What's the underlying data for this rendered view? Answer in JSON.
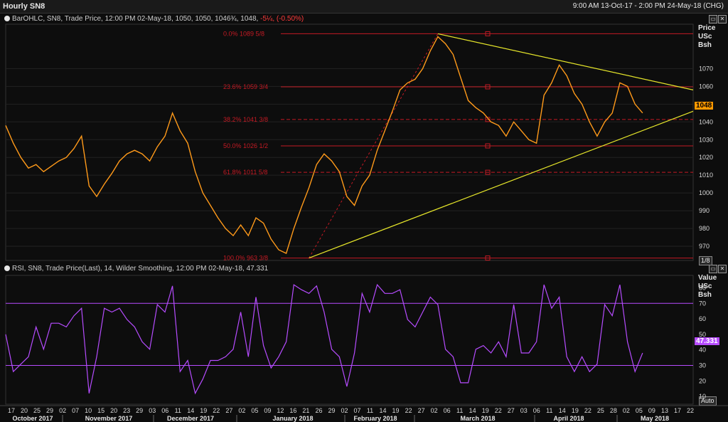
{
  "window": {
    "title": "Hourly SN8",
    "range": "9:00 AM 13-Oct-17 - 2:00 PM 24-May-18 (CHG)"
  },
  "price_legend": {
    "text": "BarOHLC, SN8, Trade Price, 12:00 PM 02-May-18, 1050, 1050, 1046",
    "frac": "¾",
    "text2": ", 1048,",
    "change": "-5¼, (-0.50%)"
  },
  "rsi_legend": {
    "text": "RSI, SN8, Trade Price(Last), 14, Wilder Smoothing, 12:00 PM 02-May-18, 47.331"
  },
  "price_axis": {
    "unit": "Price\nUSc\nBsh",
    "last": "1048",
    "last_color": "#ff9900",
    "scale_btn": "1/8"
  },
  "rsi_axis": {
    "unit": "Value\nUSc\nBsh",
    "last": "47.331",
    "last_color": "#b64cff",
    "scale_btn": "Auto"
  },
  "colors": {
    "price": "#ff9a1a",
    "rsi": "#b64cff",
    "fib": "#c41a24",
    "trend": "#e6e62a"
  },
  "chart_data": [
    {
      "type": "line",
      "title": "",
      "series_name": "SN8 Hourly Trade Price",
      "ylim": [
        962,
        1095
      ],
      "yticks": [
        970,
        980,
        990,
        1000,
        1010,
        1020,
        1030,
        1040,
        1050,
        1060,
        1070
      ],
      "x_index_range": [
        0,
        230
      ],
      "points": [
        [
          0,
          1038
        ],
        [
          3,
          1028
        ],
        [
          6,
          1020
        ],
        [
          9,
          1014
        ],
        [
          12,
          1016
        ],
        [
          15,
          1012
        ],
        [
          18,
          1015
        ],
        [
          21,
          1018
        ],
        [
          24,
          1020
        ],
        [
          27,
          1025
        ],
        [
          30,
          1032
        ],
        [
          33,
          1004
        ],
        [
          36,
          998
        ],
        [
          39,
          1005
        ],
        [
          42,
          1011
        ],
        [
          45,
          1018
        ],
        [
          48,
          1022
        ],
        [
          51,
          1024
        ],
        [
          54,
          1022
        ],
        [
          57,
          1018
        ],
        [
          60,
          1026
        ],
        [
          63,
          1032
        ],
        [
          66,
          1045
        ],
        [
          69,
          1035
        ],
        [
          72,
          1028
        ],
        [
          75,
          1012
        ],
        [
          78,
          1000
        ],
        [
          81,
          993
        ],
        [
          84,
          986
        ],
        [
          87,
          980
        ],
        [
          90,
          976
        ],
        [
          93,
          982
        ],
        [
          96,
          976
        ],
        [
          99,
          986
        ],
        [
          102,
          983
        ],
        [
          105,
          974
        ],
        [
          108,
          968
        ],
        [
          111,
          966
        ],
        [
          114,
          980
        ],
        [
          117,
          992
        ],
        [
          120,
          1003
        ],
        [
          123,
          1016
        ],
        [
          126,
          1022
        ],
        [
          129,
          1018
        ],
        [
          132,
          1012
        ],
        [
          135,
          998
        ],
        [
          138,
          993
        ],
        [
          141,
          1004
        ],
        [
          144,
          1010
        ],
        [
          147,
          1024
        ],
        [
          150,
          1035
        ],
        [
          153,
          1046
        ],
        [
          156,
          1058
        ],
        [
          159,
          1062
        ],
        [
          162,
          1064
        ],
        [
          165,
          1070
        ],
        [
          168,
          1080
        ],
        [
          171,
          1088
        ],
        [
          174,
          1084
        ],
        [
          177,
          1078
        ],
        [
          180,
          1065
        ],
        [
          183,
          1052
        ],
        [
          186,
          1048
        ],
        [
          189,
          1045
        ],
        [
          192,
          1040
        ],
        [
          195,
          1038
        ],
        [
          198,
          1032
        ],
        [
          201,
          1040
        ],
        [
          204,
          1035
        ],
        [
          207,
          1030
        ],
        [
          210,
          1028
        ],
        [
          213,
          1055
        ],
        [
          216,
          1062
        ],
        [
          219,
          1072
        ],
        [
          222,
          1066
        ],
        [
          225,
          1056
        ],
        [
          228,
          1050
        ],
        [
          231,
          1040
        ],
        [
          234,
          1032
        ],
        [
          237,
          1040
        ],
        [
          240,
          1045
        ],
        [
          243,
          1062
        ],
        [
          246,
          1060
        ],
        [
          249,
          1050
        ],
        [
          252,
          1045
        ]
      ],
      "fibonacci": [
        {
          "pct": "0.0%",
          "label": "1089 5/8",
          "value": 1089.625
        },
        {
          "pct": "23.6%",
          "label": "1059 3/4",
          "value": 1059.75
        },
        {
          "pct": "38.2%",
          "label": "1041 3/8",
          "value": 1041.375
        },
        {
          "pct": "50.0%",
          "label": "1026 1/2",
          "value": 1026.5
        },
        {
          "pct": "61.8%",
          "label": "1011 5/8",
          "value": 1011.625
        },
        {
          "pct": "100.0%",
          "label": "963 3/8",
          "value": 963.375
        }
      ],
      "trendlines": [
        {
          "from": [
            120,
            963.375
          ],
          "to": [
            272,
            1046
          ]
        },
        {
          "from": [
            171,
            1089.625
          ],
          "to": [
            272,
            1058
          ]
        }
      ]
    },
    {
      "type": "line",
      "title": "",
      "series_name": "RSI 14 Wilder",
      "ylim": [
        5,
        88
      ],
      "yticks": [
        10,
        20,
        30,
        40,
        50,
        60,
        70,
        80
      ],
      "overbought": 70,
      "oversold": 30,
      "last_value": 47.331
    }
  ],
  "x_axis": {
    "days": [
      "17",
      "20",
      "25",
      "29",
      "02",
      "07",
      "10",
      "15",
      "20",
      "23",
      "29",
      "03",
      "06",
      "11",
      "14",
      "19",
      "22",
      "27",
      "02",
      "05",
      "09",
      "12",
      "16",
      "21",
      "26",
      "29",
      "02",
      "07",
      "11",
      "14",
      "19",
      "22",
      "27",
      "02",
      "06",
      "11",
      "14",
      "19",
      "22",
      "27",
      "03",
      "06",
      "11",
      "14",
      "19",
      "22",
      "25",
      "28",
      "02",
      "05",
      "09",
      "13",
      "17",
      "22"
    ],
    "months": [
      "October 2017",
      "November 2017",
      "December 2017",
      "January 2018",
      "February 2018",
      "March 2018",
      "April 2018",
      "May 2018"
    ]
  }
}
